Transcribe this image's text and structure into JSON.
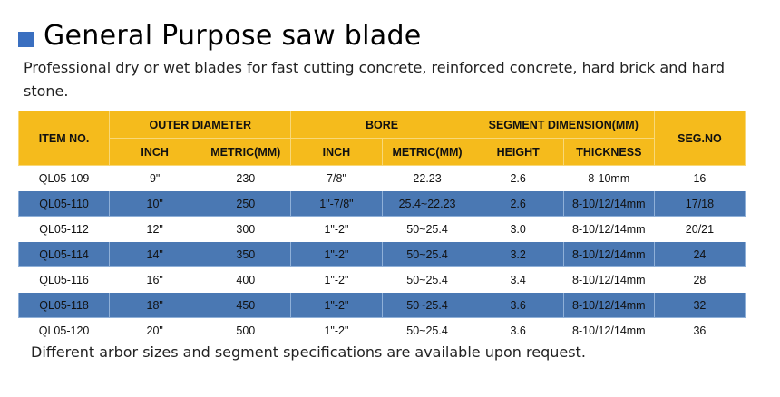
{
  "title": "General Purpose saw blade",
  "description": "Professional dry or wet blades for fast cutting concrete, reinforced concrete, hard brick and hard stone.",
  "colors": {
    "header": "#f5bb1c",
    "stripe": "#4a78b3",
    "title_square": "#3a6fc0"
  },
  "table": {
    "headers": {
      "item": "ITEM NO.",
      "outer": "OUTER DIAMETER",
      "bore": "BORE",
      "segment": "SEGMENT DIMENSION(MM)",
      "segno": "SEG.NO",
      "inch": "INCH",
      "metric": "METRIC(MM)",
      "height": "HEIGHT",
      "thickness": "THICKNESS"
    },
    "rows": [
      [
        "QL05-109",
        "9\"",
        "230",
        "7/8\"",
        "22.23",
        "2.6",
        "8-10mm",
        "16"
      ],
      [
        "QL05-110",
        "10\"",
        "250",
        "1\"-7/8\"",
        "25.4~22.23",
        "2.6",
        "8-10/12/14mm",
        "17/18"
      ],
      [
        "QL05-112",
        "12\"",
        "300",
        "1\"-2\"",
        "50~25.4",
        "3.0",
        "8-10/12/14mm",
        "20/21"
      ],
      [
        "QL05-114",
        "14\"",
        "350",
        "1\"-2\"",
        "50~25.4",
        "3.2",
        "8-10/12/14mm",
        "24"
      ],
      [
        "QL05-116",
        "16\"",
        "400",
        "1\"-2\"",
        "50~25.4",
        "3.4",
        "8-10/12/14mm",
        "28"
      ],
      [
        "QL05-118",
        "18\"",
        "450",
        "1\"-2\"",
        "50~25.4",
        "3.6",
        "8-10/12/14mm",
        "32"
      ],
      [
        "QL05-120",
        "20\"",
        "500",
        "1\"-2\"",
        "50~25.4",
        "3.6",
        "8-10/12/14mm",
        "36"
      ]
    ]
  },
  "footer": "Different arbor sizes and segment specifications are available upon request."
}
